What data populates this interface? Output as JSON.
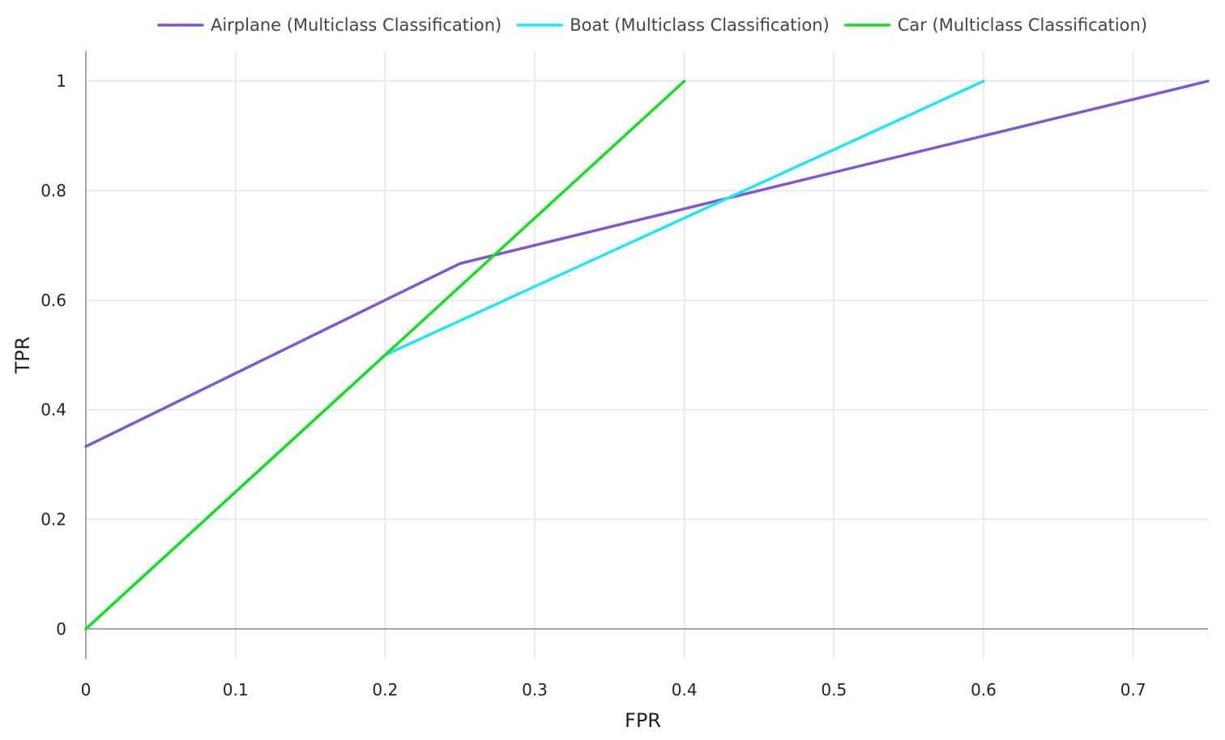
{
  "chart_data": {
    "type": "line",
    "title": "",
    "xlabel": "FPR",
    "ylabel": "TPR",
    "xlim": [
      0,
      0.75
    ],
    "ylim": [
      -0.055,
      1.055
    ],
    "grid": true,
    "legend_position": "top-center",
    "x_ticks": [
      0,
      0.1,
      0.2,
      0.3,
      0.4,
      0.5,
      0.6,
      0.7
    ],
    "x_tick_labels": [
      "0",
      "0.1",
      "0.2",
      "0.3",
      "0.4",
      "0.5",
      "0.6",
      "0.7"
    ],
    "y_ticks": [
      0,
      0.2,
      0.4,
      0.6,
      0.8,
      1
    ],
    "y_tick_labels": [
      "0",
      "0.2",
      "0.4",
      "0.6",
      "0.8",
      "1"
    ],
    "series": [
      {
        "name": "Airplane (Multiclass Classification)",
        "color": "#7e57d4",
        "x": [
          0,
          0.25,
          0.75
        ],
        "y": [
          0.333,
          0.667,
          1
        ]
      },
      {
        "name": "Boat (Multiclass Classification)",
        "color": "#1ee6f7",
        "x": [
          0,
          0.2,
          0.6
        ],
        "y": [
          0,
          0.5,
          1
        ]
      },
      {
        "name": "Car (Multiclass Classification)",
        "color": "#14e021",
        "x": [
          0,
          0.4
        ],
        "y": [
          0,
          1
        ]
      }
    ]
  }
}
